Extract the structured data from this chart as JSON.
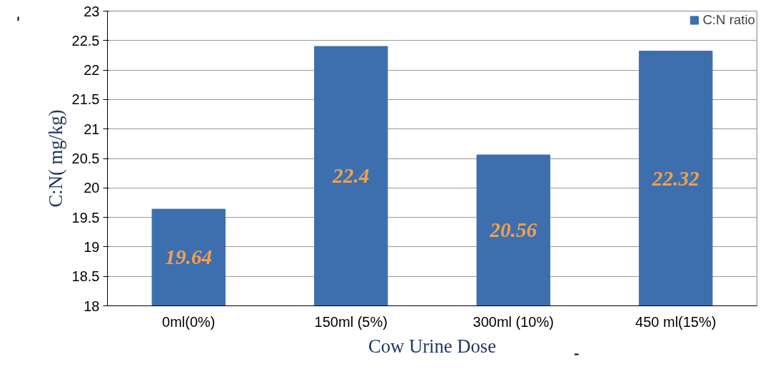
{
  "chart_data": {
    "type": "bar",
    "categories": [
      "0ml(0%)",
      "150ml (5%)",
      "300ml (10%)",
      "450 ml(15%)"
    ],
    "series": [
      {
        "name": "C:N ratio",
        "color": "#3d6fae",
        "values": [
          19.64,
          22.4,
          20.56,
          22.32
        ]
      }
    ],
    "xlabel": "Cow Urine Dose",
    "ylabel": "C:N( mg/kg)",
    "ylim": [
      18,
      23
    ],
    "yticks": [
      18,
      18.5,
      19,
      19.5,
      20,
      20.5,
      21,
      21.5,
      22,
      22.5,
      23
    ],
    "grid": "y",
    "legend": "top right",
    "data_labels": true
  }
}
